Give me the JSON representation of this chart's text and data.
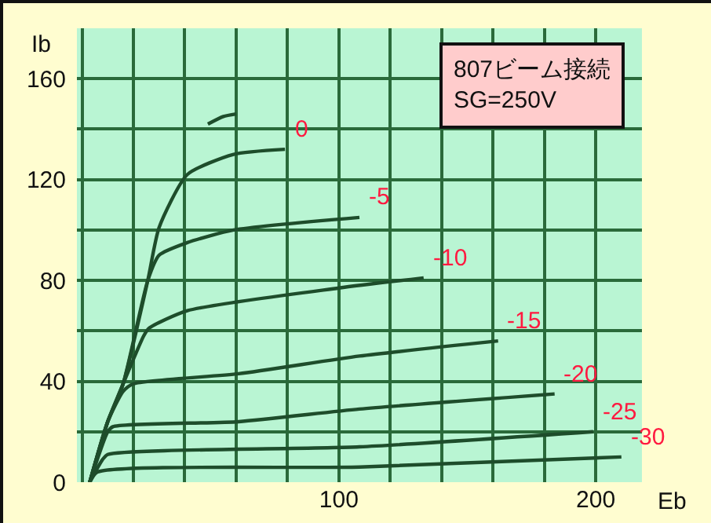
{
  "chart_data": {
    "type": "line",
    "title": "807ビーム接続",
    "subtitle": "SG=250V",
    "xlabel": "Eb",
    "ylabel": "Ib",
    "xlim": [
      -2,
      218
    ],
    "ylim": [
      0,
      180
    ],
    "xticks": [
      {
        "value": 0,
        "label": null
      },
      {
        "value": 20,
        "label": null
      },
      {
        "value": 40,
        "label": null
      },
      {
        "value": 60,
        "label": null
      },
      {
        "value": 80,
        "label": null
      },
      100,
      {
        "value": 120,
        "label": null
      },
      {
        "value": 140,
        "label": null
      },
      {
        "value": 160,
        "label": null
      },
      {
        "value": 180,
        "label": null
      },
      200
    ],
    "yticks": [
      0,
      {
        "value": 20,
        "label": null
      },
      40,
      {
        "value": 60,
        "label": null
      },
      80,
      {
        "value": 100,
        "label": null
      },
      120,
      {
        "value": 140,
        "label": null
      },
      160
    ],
    "grid": true,
    "legend": false,
    "marker": "none",
    "line_style": "solid",
    "series": [
      {
        "name": "0",
        "color": "#1e4d2b",
        "x": [
          3,
          10,
          16,
          25.6,
          30,
          41,
          59,
          79
        ],
        "values": [
          0,
          24,
          39,
          80,
          101,
          122,
          130,
          132
        ]
      },
      {
        "name": "-5",
        "color": "#1e4d2b",
        "x": [
          3,
          10,
          16,
          25.6,
          30,
          41,
          59,
          108
        ],
        "values": [
          0,
          24,
          39,
          80,
          90,
          95,
          100,
          105
        ]
      },
      {
        "name": "-10",
        "color": "#1e4d2b",
        "x": [
          3,
          10,
          16,
          24,
          26,
          41,
          100,
          133
        ],
        "values": [
          0,
          24,
          39,
          58,
          61,
          68,
          77,
          81
        ]
      },
      {
        "name": "-15",
        "color": "#1e4d2b",
        "x": [
          3,
          10,
          16,
          20,
          61,
          108,
          162
        ],
        "values": [
          0,
          24,
          36,
          39,
          43,
          50,
          56
        ]
      },
      {
        "name": "-20",
        "color": "#1e4d2b",
        "x": [
          3,
          10,
          12,
          61,
          108,
          184
        ],
        "values": [
          0,
          20,
          22,
          24,
          29,
          35
        ]
      },
      {
        "name": "-25",
        "color": "#1e4d2b",
        "x": [
          3,
          8,
          10,
          108,
          199
        ],
        "values": [
          0,
          9,
          11,
          14,
          20
        ]
      },
      {
        "name": "-30",
        "color": "#1e4d2b",
        "x": [
          3,
          6,
          108,
          210
        ],
        "values": [
          0,
          4,
          6,
          10
        ]
      },
      {
        "color": "#1e4d2b",
        "x": [
          49,
          55,
          60
        ],
        "values": [
          142,
          145,
          146
        ]
      }
    ]
  }
}
